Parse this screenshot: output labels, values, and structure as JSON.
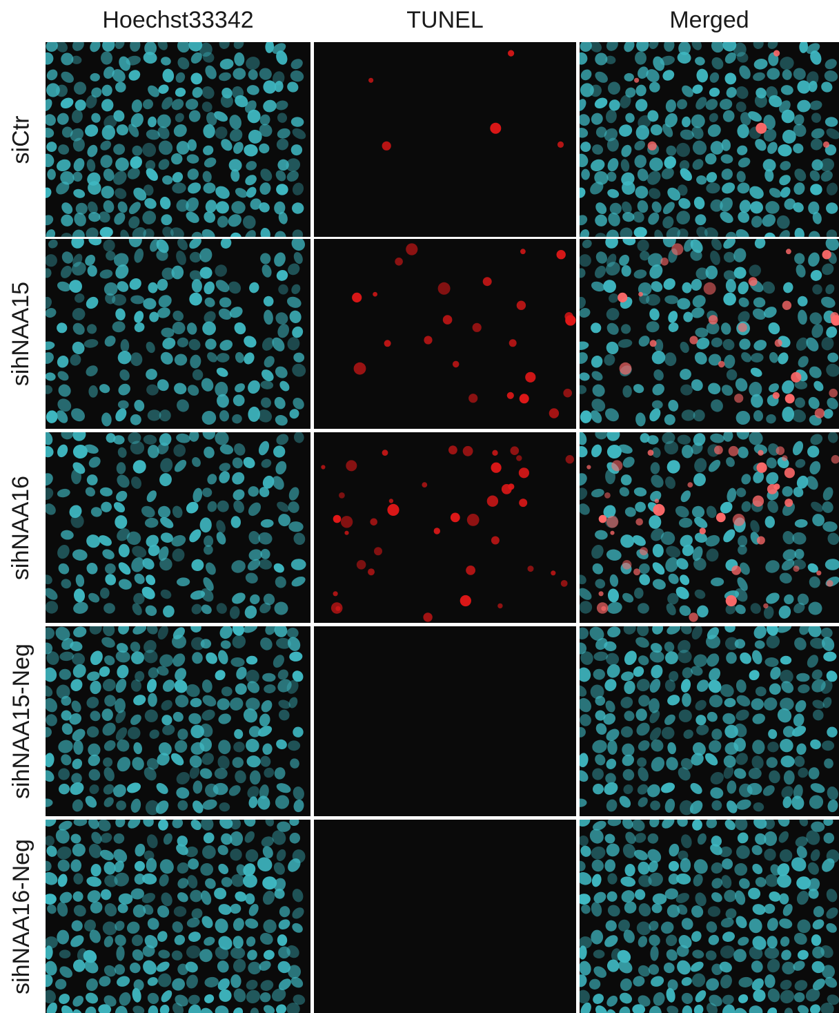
{
  "columns": [
    {
      "label": "Hoechst33342",
      "channel": "hoechst"
    },
    {
      "label": "TUNEL",
      "channel": "tunel"
    },
    {
      "label": "Merged",
      "channel": "merged"
    }
  ],
  "rows": [
    {
      "label": "siCtr",
      "hoechst_density": "high",
      "tunel_positive": "very-few"
    },
    {
      "label": "sihNAA15",
      "hoechst_density": "medium",
      "tunel_positive": "moderate"
    },
    {
      "label": "sihNAA16",
      "hoechst_density": "medium",
      "tunel_positive": "many"
    },
    {
      "label": "sihNAA15-Neg",
      "hoechst_density": "high",
      "tunel_positive": "none"
    },
    {
      "label": "sihNAA16-Neg",
      "hoechst_density": "high",
      "tunel_positive": "none"
    }
  ],
  "colors": {
    "hoechst": "#3fb8c2",
    "tunel": "#e01818",
    "background": "#0a0a0a",
    "separator": "#ffffff"
  }
}
